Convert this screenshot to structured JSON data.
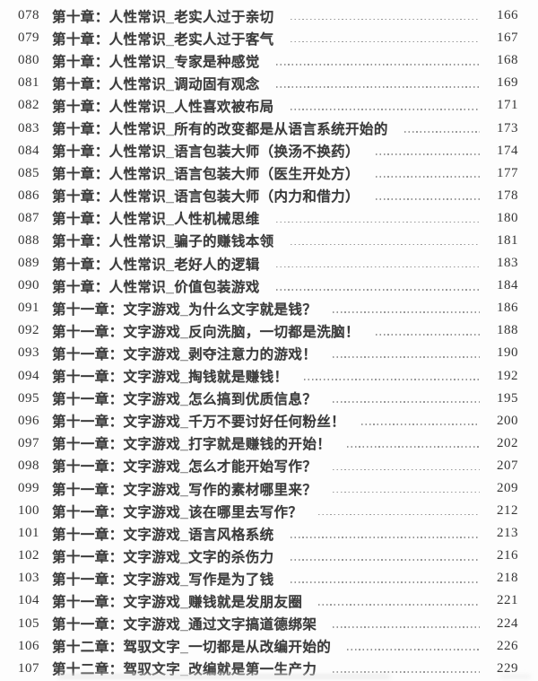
{
  "style": {
    "text_color": "#3c3c3c",
    "number_color": "#353535",
    "leader_color": "#9a9a9a",
    "background": "#fdfdfd"
  },
  "format": {
    "chapter_separator": "："
  },
  "toc": {
    "entries": [
      {
        "num": "078",
        "chapter": "第十章",
        "title": "人性常识_老实人过于亲切",
        "page": "166"
      },
      {
        "num": "079",
        "chapter": "第十章",
        "title": "人性常识_老实人过于客气",
        "page": "167"
      },
      {
        "num": "080",
        "chapter": "第十章",
        "title": "人性常识_专家是种感觉",
        "page": "168"
      },
      {
        "num": "081",
        "chapter": "第十章",
        "title": "人性常识_调动固有观念",
        "page": "169"
      },
      {
        "num": "082",
        "chapter": "第十章",
        "title": "人性常识_人性喜欢被布局",
        "page": "171"
      },
      {
        "num": "083",
        "chapter": "第十章",
        "title": "人性常识_所有的改变都是从语言系统开始的",
        "page": "173"
      },
      {
        "num": "084",
        "chapter": "第十章",
        "title": "人性常识_语言包装大师（换汤不换药）",
        "page": "174"
      },
      {
        "num": "085",
        "chapter": "第十章",
        "title": "人性常识_语言包装大师（医生开处方）",
        "page": "177"
      },
      {
        "num": "086",
        "chapter": "第十章",
        "title": "人性常识_语言包装大师（内力和借力）",
        "page": "178"
      },
      {
        "num": "087",
        "chapter": "第十章",
        "title": "人性常识_人性机械思维",
        "page": "180"
      },
      {
        "num": "088",
        "chapter": "第十章",
        "title": "人性常识_骗子的赚钱本领",
        "page": "181"
      },
      {
        "num": "089",
        "chapter": "第十章",
        "title": "人性常识_老好人的逻辑",
        "page": "183"
      },
      {
        "num": "090",
        "chapter": "第十章",
        "title": "人性常识_价值包装游戏",
        "page": "184"
      },
      {
        "num": "091",
        "chapter": "第十一章",
        "title": "文字游戏_为什么文字就是钱？",
        "page": "186"
      },
      {
        "num": "092",
        "chapter": "第十一章",
        "title": "文字游戏_反向洗脑，一切都是洗脑！",
        "page": "188"
      },
      {
        "num": "093",
        "chapter": "第十一章",
        "title": "文字游戏_剥夺注意力的游戏！",
        "page": "190"
      },
      {
        "num": "094",
        "chapter": "第十一章",
        "title": "文字游戏_掏钱就是赚钱！",
        "page": "192"
      },
      {
        "num": "095",
        "chapter": "第十一章",
        "title": "文字游戏_怎么搞到优质信息？",
        "page": "195"
      },
      {
        "num": "096",
        "chapter": "第十一章",
        "title": "文字游戏_千万不要讨好任何粉丝！",
        "page": "200"
      },
      {
        "num": "097",
        "chapter": "第十一章",
        "title": "文字游戏_打字就是赚钱的开始！",
        "page": "202"
      },
      {
        "num": "098",
        "chapter": "第十一章",
        "title": "文字游戏_怎么才能开始写作？",
        "page": "207"
      },
      {
        "num": "099",
        "chapter": "第十一章",
        "title": "文字游戏_写作的素材哪里来？",
        "page": "209"
      },
      {
        "num": "100",
        "chapter": "第十一章",
        "title": "文字游戏_该在哪里去写作？",
        "page": "212"
      },
      {
        "num": "101",
        "chapter": "第十一章",
        "title": "文字游戏_语言风格系统",
        "page": "213"
      },
      {
        "num": "102",
        "chapter": "第十一章",
        "title": "文字游戏_文字的杀伤力",
        "page": "216"
      },
      {
        "num": "103",
        "chapter": "第十一章",
        "title": "文字游戏_写作是为了钱",
        "page": "218"
      },
      {
        "num": "104",
        "chapter": "第十一章",
        "title": "文字游戏_赚钱就是发朋友圈",
        "page": "221"
      },
      {
        "num": "105",
        "chapter": "第十一章",
        "title": "文字游戏_通过文字搞道德绑架",
        "page": "224"
      },
      {
        "num": "106",
        "chapter": "第十二章",
        "title": "驾驭文字_一切都是从改编开始的",
        "page": "226"
      },
      {
        "num": "107",
        "chapter": "第十二章",
        "title": "驾驭文字_改编就是第一生产力",
        "page": "229"
      }
    ]
  }
}
